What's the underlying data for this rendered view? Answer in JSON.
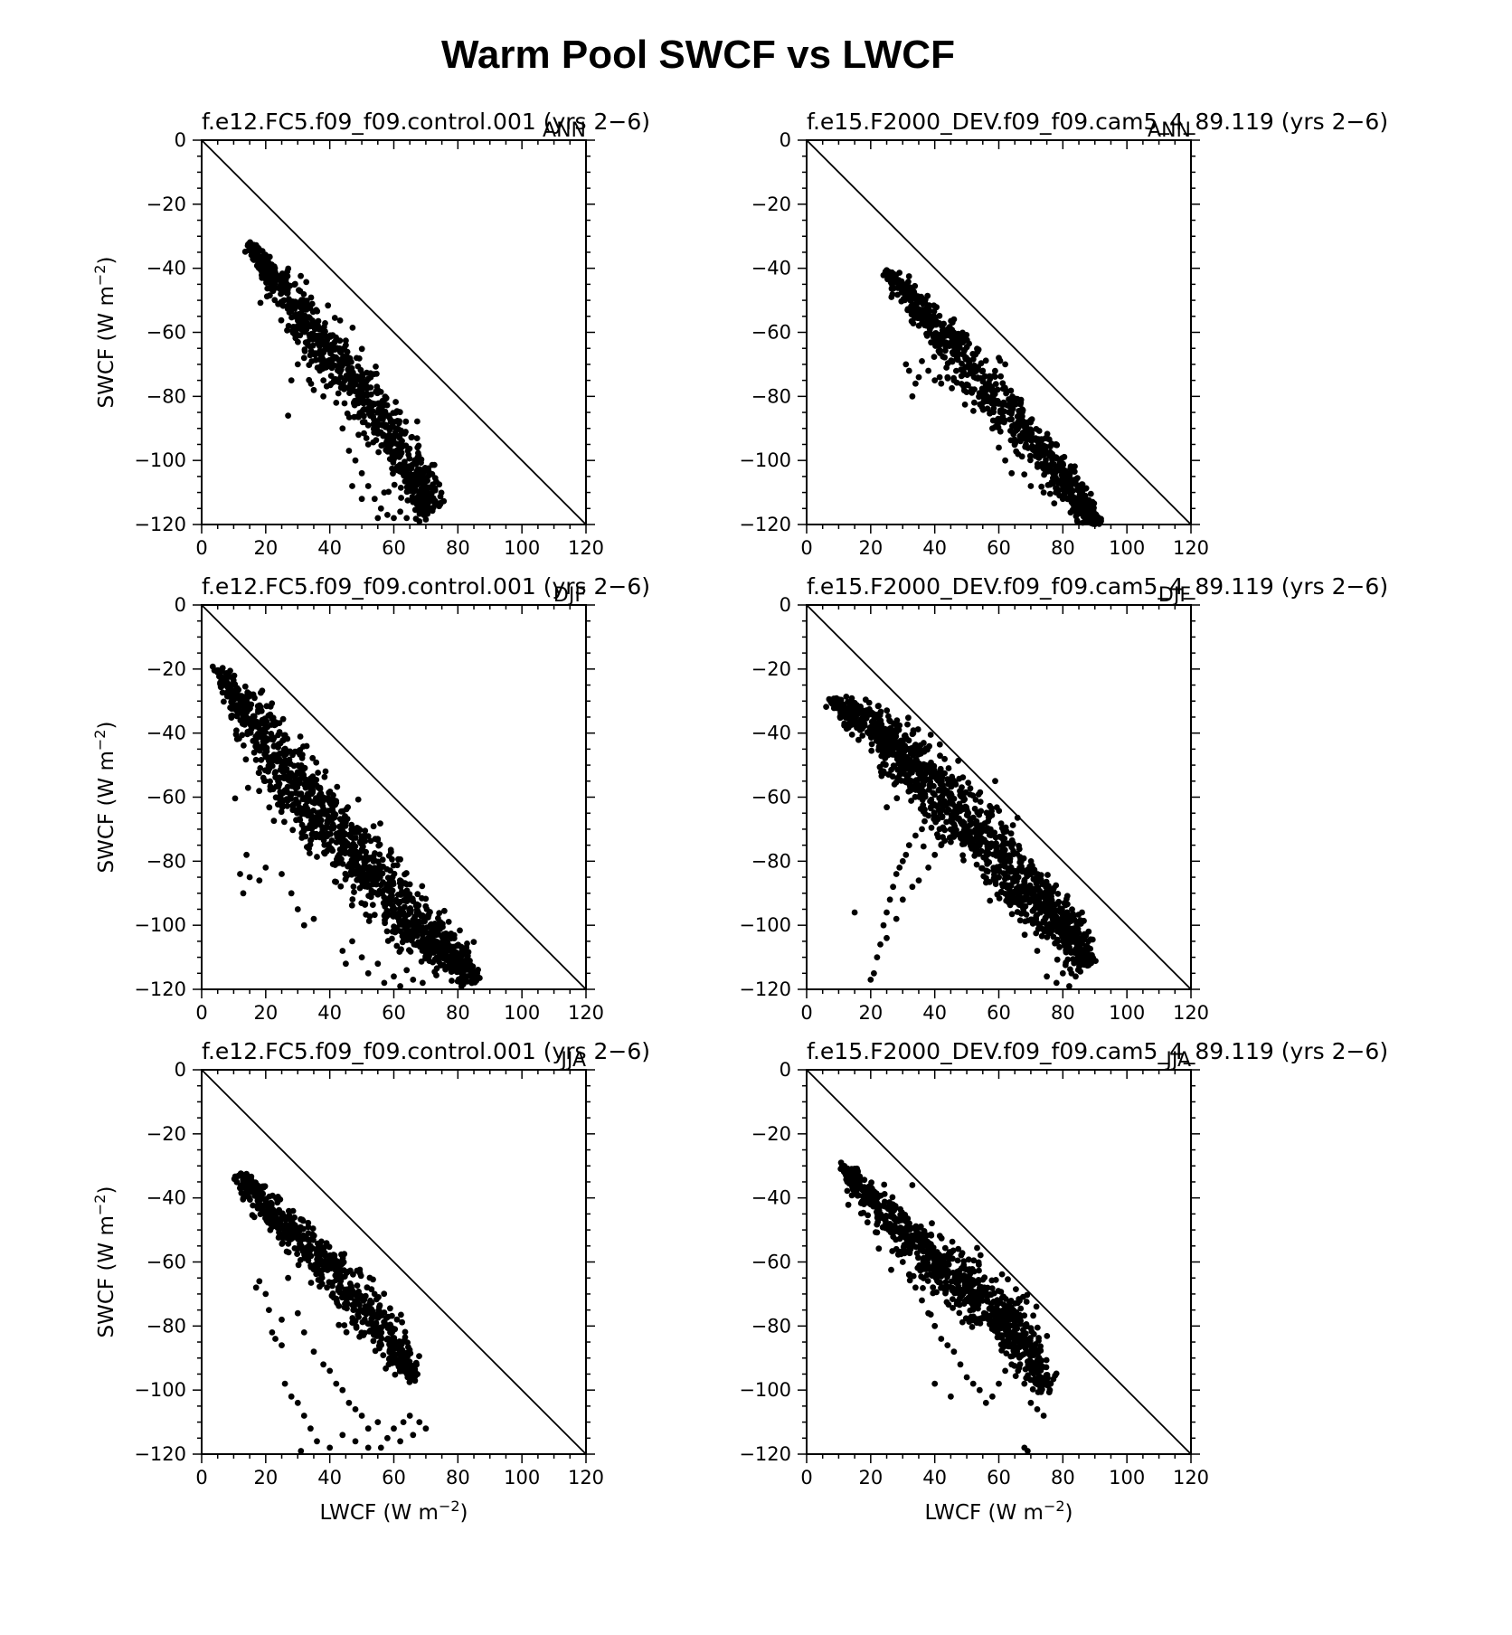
{
  "figure": {
    "title": "Warm Pool SWCF vs LWCF"
  },
  "chart_data": [
    {
      "type": "scatter",
      "title": "f.e12.FC5.f09_f09.control.001 (yrs 2−6)",
      "season": "ANN",
      "xlabel": "",
      "ylabel": "SWCF (W m−2)",
      "xlim": [
        0,
        120
      ],
      "ylim": [
        -120,
        0
      ],
      "xticks": [
        0,
        20,
        40,
        60,
        80,
        100,
        120
      ],
      "yticks": [
        0,
        -20,
        -40,
        -60,
        -80,
        -100,
        -120
      ],
      "reference_line": [
        [
          0,
          0
        ],
        [
          120,
          -120
        ]
      ],
      "cloud": {
        "count": 900,
        "center_line": [
          [
            15,
            -33
          ],
          [
            25,
            -46
          ],
          [
            35,
            -60
          ],
          [
            45,
            -72
          ],
          [
            55,
            -85
          ],
          [
            65,
            -103
          ],
          [
            72,
            -116
          ]
        ],
        "halfwidth": [
          1.5,
          4,
          6,
          6,
          6,
          6,
          5
        ]
      },
      "extra_points": [
        [
          27,
          -86
        ],
        [
          30,
          -70
        ],
        [
          28,
          -75
        ],
        [
          32,
          -68
        ],
        [
          35,
          -78
        ],
        [
          38,
          -80
        ],
        [
          42,
          -82
        ],
        [
          44,
          -90
        ],
        [
          46,
          -97
        ],
        [
          48,
          -100
        ],
        [
          50,
          -104
        ],
        [
          52,
          -108
        ],
        [
          54,
          -112
        ],
        [
          56,
          -115
        ],
        [
          58,
          -117
        ],
        [
          60,
          -118
        ],
        [
          62,
          -116
        ],
        [
          64,
          -118
        ],
        [
          66,
          -113
        ],
        [
          68,
          -119
        ],
        [
          47,
          -108
        ],
        [
          50,
          -112
        ],
        [
          55,
          -118
        ],
        [
          57,
          -110
        ],
        [
          52,
          -95
        ],
        [
          49,
          -92
        ]
      ]
    },
    {
      "type": "scatter",
      "title": "f.e15.F2000_DEV.f09_f09.cam5_4_89.119 (yrs 2−6)",
      "season": "ANN",
      "xlabel": "",
      "ylabel": "",
      "xlim": [
        0,
        120
      ],
      "ylim": [
        -120,
        0
      ],
      "xticks": [
        0,
        20,
        40,
        60,
        80,
        100,
        120
      ],
      "yticks": [
        0,
        -20,
        -40,
        -60,
        -80,
        -100,
        -120
      ],
      "reference_line": [
        [
          0,
          0
        ],
        [
          120,
          -120
        ]
      ],
      "cloud": {
        "count": 850,
        "center_line": [
          [
            25,
            -41
          ],
          [
            35,
            -52
          ],
          [
            45,
            -64
          ],
          [
            55,
            -77
          ],
          [
            65,
            -88
          ],
          [
            75,
            -100
          ],
          [
            85,
            -113
          ],
          [
            90,
            -119
          ]
        ],
        "halfwidth": [
          1.5,
          4,
          6,
          6,
          6,
          5,
          4,
          2
        ]
      },
      "extra_points": [
        [
          31,
          -70
        ],
        [
          32,
          -72
        ],
        [
          33,
          -80
        ],
        [
          34,
          -76
        ],
        [
          35,
          -74
        ],
        [
          36,
          -69
        ],
        [
          38,
          -72
        ],
        [
          40,
          -75
        ],
        [
          42,
          -76
        ],
        [
          44,
          -74
        ],
        [
          46,
          -75
        ],
        [
          47,
          -68
        ],
        [
          49,
          -67
        ],
        [
          55,
          -72
        ],
        [
          60,
          -68
        ],
        [
          62,
          -70
        ],
        [
          58,
          -90
        ],
        [
          60,
          -96
        ],
        [
          62,
          -100
        ],
        [
          64,
          -104
        ],
        [
          66,
          -98
        ],
        [
          70,
          -108
        ],
        [
          74,
          -110
        ],
        [
          80,
          -112
        ],
        [
          84,
          -116
        ]
      ]
    },
    {
      "type": "scatter",
      "title": "f.e12.FC5.f09_f09.control.001 (yrs 2−6)",
      "season": "DJF",
      "xlabel": "",
      "ylabel": "SWCF (W m−2)",
      "xlim": [
        0,
        120
      ],
      "ylim": [
        -120,
        0
      ],
      "xticks": [
        0,
        20,
        40,
        60,
        80,
        100,
        120
      ],
      "yticks": [
        0,
        -20,
        -40,
        -60,
        -80,
        -100,
        -120
      ],
      "reference_line": [
        [
          0,
          0
        ],
        [
          120,
          -120
        ]
      ],
      "cloud": {
        "count": 1300,
        "center_line": [
          [
            5,
            -20
          ],
          [
            15,
            -35
          ],
          [
            25,
            -50
          ],
          [
            35,
            -63
          ],
          [
            45,
            -74
          ],
          [
            55,
            -86
          ],
          [
            65,
            -98
          ],
          [
            75,
            -108
          ],
          [
            85,
            -117
          ]
        ],
        "halfwidth": [
          1.5,
          6,
          9,
          9,
          8,
          7,
          7,
          6,
          3
        ]
      },
      "extra_points": [
        [
          12,
          -84
        ],
        [
          13,
          -90
        ],
        [
          15,
          -85
        ],
        [
          18,
          -86
        ],
        [
          20,
          -82
        ],
        [
          25,
          -84
        ],
        [
          28,
          -90
        ],
        [
          30,
          -95
        ],
        [
          32,
          -100
        ],
        [
          35,
          -98
        ],
        [
          44,
          -108
        ],
        [
          45,
          -112
        ],
        [
          47,
          -105
        ],
        [
          50,
          -110
        ],
        [
          52,
          -115
        ],
        [
          55,
          -112
        ],
        [
          57,
          -118
        ],
        [
          60,
          -116
        ],
        [
          62,
          -119
        ],
        [
          64,
          -114
        ],
        [
          66,
          -117
        ],
        [
          69,
          -118
        ],
        [
          14,
          -78
        ]
      ]
    },
    {
      "type": "scatter",
      "title": "f.e15.F2000_DEV.f09_f09.cam5_4_89.119 (yrs 2−6)",
      "season": "DJF",
      "xlabel": "",
      "ylabel": "",
      "xlim": [
        0,
        120
      ],
      "ylim": [
        -120,
        0
      ],
      "xticks": [
        0,
        20,
        40,
        60,
        80,
        100,
        120
      ],
      "yticks": [
        0,
        -20,
        -40,
        -60,
        -80,
        -100,
        -120
      ],
      "reference_line": [
        [
          0,
          0
        ],
        [
          120,
          -120
        ]
      ],
      "cloud": {
        "count": 1300,
        "center_line": [
          [
            8,
            -30
          ],
          [
            20,
            -37
          ],
          [
            30,
            -47
          ],
          [
            40,
            -57
          ],
          [
            50,
            -68
          ],
          [
            60,
            -78
          ],
          [
            70,
            -90
          ],
          [
            80,
            -100
          ],
          [
            88,
            -112
          ]
        ],
        "halfwidth": [
          1.5,
          6,
          8,
          9,
          8,
          7,
          7,
          6,
          4
        ]
      },
      "extra_points": [
        [
          15,
          -96
        ],
        [
          20,
          -117
        ],
        [
          21,
          -115
        ],
        [
          22,
          -110
        ],
        [
          23,
          -106
        ],
        [
          24,
          -100
        ],
        [
          25,
          -96
        ],
        [
          26,
          -92
        ],
        [
          27,
          -88
        ],
        [
          28,
          -84
        ],
        [
          29,
          -82
        ],
        [
          30,
          -80
        ],
        [
          31,
          -78
        ],
        [
          32,
          -75
        ],
        [
          34,
          -72
        ],
        [
          36,
          -70
        ],
        [
          25,
          -104
        ],
        [
          28,
          -98
        ],
        [
          30,
          -92
        ],
        [
          33,
          -88
        ],
        [
          35,
          -86
        ],
        [
          38,
          -82
        ],
        [
          40,
          -78
        ],
        [
          42,
          -75
        ],
        [
          45,
          -74
        ],
        [
          72,
          -108
        ],
        [
          75,
          -116
        ],
        [
          78,
          -118
        ],
        [
          80,
          -115
        ],
        [
          82,
          -119
        ],
        [
          84,
          -116
        ]
      ]
    },
    {
      "type": "scatter",
      "title": "f.e12.FC5.f09_f09.control.001 (yrs 2−6)",
      "season": "JJA",
      "xlabel": "LWCF (W m−2)",
      "ylabel": "SWCF (W m−2)",
      "xlim": [
        0,
        120
      ],
      "ylim": [
        -120,
        0
      ],
      "xticks": [
        0,
        20,
        40,
        60,
        80,
        100,
        120
      ],
      "yticks": [
        0,
        -20,
        -40,
        -60,
        -80,
        -100,
        -120
      ],
      "reference_line": [
        [
          0,
          0
        ],
        [
          120,
          -120
        ]
      ],
      "cloud": {
        "count": 700,
        "center_line": [
          [
            12,
            -33
          ],
          [
            20,
            -43
          ],
          [
            30,
            -52
          ],
          [
            40,
            -62
          ],
          [
            50,
            -74
          ],
          [
            60,
            -86
          ],
          [
            66,
            -96
          ]
        ],
        "halfwidth": [
          2,
          4,
          5,
          6,
          6,
          5,
          2
        ]
      },
      "extra_points": [
        [
          17,
          -68
        ],
        [
          18,
          -66
        ],
        [
          20,
          -70
        ],
        [
          21,
          -75
        ],
        [
          22,
          -82
        ],
        [
          23,
          -84
        ],
        [
          25,
          -78
        ],
        [
          27,
          -65
        ],
        [
          30,
          -76
        ],
        [
          32,
          -82
        ],
        [
          35,
          -88
        ],
        [
          38,
          -92
        ],
        [
          40,
          -94
        ],
        [
          42,
          -98
        ],
        [
          44,
          -100
        ],
        [
          46,
          -104
        ],
        [
          48,
          -106
        ],
        [
          50,
          -108
        ],
        [
          52,
          -112
        ],
        [
          55,
          -110
        ],
        [
          58,
          -115
        ],
        [
          60,
          -112
        ],
        [
          63,
          -110
        ],
        [
          65,
          -108
        ],
        [
          68,
          -110
        ],
        [
          70,
          -112
        ],
        [
          25,
          -86
        ],
        [
          26,
          -98
        ],
        [
          28,
          -102
        ],
        [
          30,
          -104
        ],
        [
          32,
          -108
        ],
        [
          34,
          -112
        ],
        [
          36,
          -116
        ],
        [
          31,
          -119
        ],
        [
          40,
          -118
        ],
        [
          44,
          -114
        ],
        [
          48,
          -116
        ],
        [
          52,
          -118
        ],
        [
          56,
          -118
        ],
        [
          62,
          -116
        ],
        [
          66,
          -114
        ]
      ]
    },
    {
      "type": "scatter",
      "title": "f.e15.F2000_DEV.f09_f09.cam5_4_89.119 (yrs 2−6)",
      "season": "JJA",
      "xlabel": "LWCF (W m−2)",
      "ylabel": "",
      "xlim": [
        0,
        120
      ],
      "ylim": [
        -120,
        0
      ],
      "xticks": [
        0,
        20,
        40,
        60,
        80,
        100,
        120
      ],
      "yticks": [
        0,
        -20,
        -40,
        -60,
        -80,
        -100,
        -120
      ],
      "reference_line": [
        [
          0,
          0
        ],
        [
          120,
          -120
        ]
      ],
      "cloud": {
        "count": 950,
        "center_line": [
          [
            11,
            -30
          ],
          [
            20,
            -40
          ],
          [
            30,
            -50
          ],
          [
            40,
            -60
          ],
          [
            50,
            -68
          ],
          [
            60,
            -76
          ],
          [
            68,
            -86
          ],
          [
            75,
            -100
          ]
        ],
        "halfwidth": [
          2,
          4,
          6,
          8,
          8,
          7,
          5,
          3
        ]
      },
      "extra_points": [
        [
          28,
          -56
        ],
        [
          30,
          -60
        ],
        [
          32,
          -64
        ],
        [
          34,
          -68
        ],
        [
          36,
          -72
        ],
        [
          38,
          -76
        ],
        [
          40,
          -80
        ],
        [
          42,
          -84
        ],
        [
          44,
          -86
        ],
        [
          46,
          -88
        ],
        [
          48,
          -92
        ],
        [
          50,
          -96
        ],
        [
          52,
          -98
        ],
        [
          54,
          -100
        ],
        [
          56,
          -104
        ],
        [
          58,
          -102
        ],
        [
          60,
          -98
        ],
        [
          62,
          -94
        ],
        [
          64,
          -92
        ],
        [
          66,
          -94
        ],
        [
          68,
          -98
        ],
        [
          70,
          -104
        ],
        [
          72,
          -106
        ],
        [
          74,
          -108
        ],
        [
          68,
          -118
        ],
        [
          69,
          -119
        ],
        [
          33,
          -36
        ],
        [
          40,
          -98
        ],
        [
          45,
          -102
        ]
      ]
    }
  ]
}
